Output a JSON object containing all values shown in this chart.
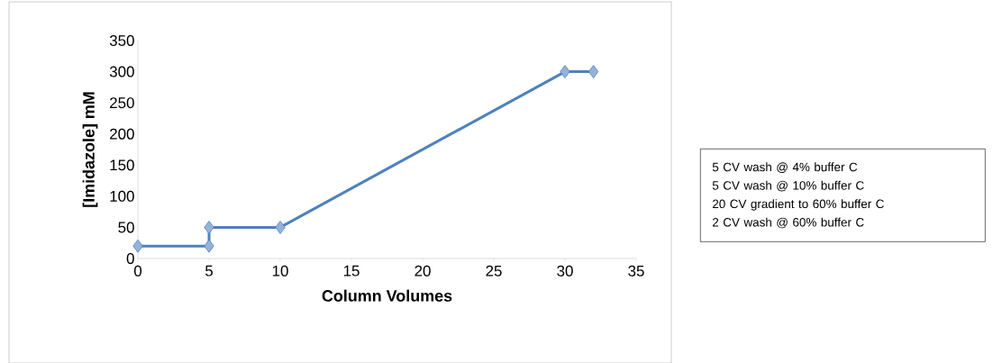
{
  "chart_data": {
    "type": "line",
    "xlabel": "Column Volumes",
    "ylabel": "[Imidazole] mM",
    "x": [
      0,
      5,
      5,
      10,
      30,
      32
    ],
    "series": [
      {
        "color": "#4f81bd",
        "values": [
          20,
          20,
          50,
          50,
          300,
          300
        ]
      }
    ],
    "xlim": [
      0,
      35
    ],
    "xticks": [
      0,
      5,
      10,
      15,
      20,
      25,
      30,
      35
    ],
    "ylim": [
      0,
      350
    ],
    "yticks": [
      0,
      50,
      100,
      150,
      200,
      250,
      300,
      350
    ],
    "grid": false,
    "marker": "diamond",
    "line_style": "solid",
    "annotations": [
      "5 CV wash @ 4% buffer C",
      "5 CV wash @ 10% buffer C",
      "20 CV gradient to 60% buffer C",
      "2 CV wash @ 60% buffer C"
    ]
  }
}
